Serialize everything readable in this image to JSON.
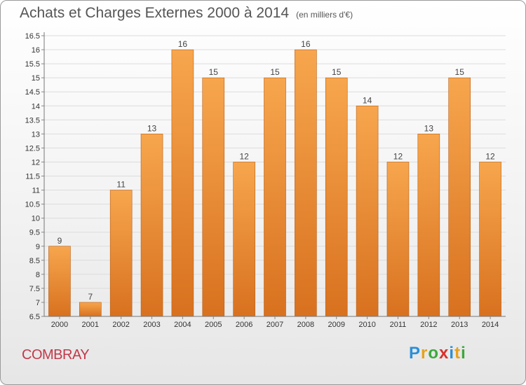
{
  "header": {
    "title": "Achats et Charges Externes 2000 à 2014",
    "unit": "(en milliers d'€)"
  },
  "footer": {
    "town": "COMBRAY",
    "logo": [
      "P",
      "r",
      "o",
      "x",
      "i",
      "t",
      "i"
    ],
    "logo_colors": [
      "#2b8fd6",
      "#e8a11a",
      "#3da83d",
      "#d8312a",
      "#2b8fd6",
      "#e8a11a",
      "#3da83d"
    ]
  },
  "chart_data": {
    "type": "bar",
    "title": "Achats et Charges Externes 2000 à 2014",
    "subtitle": "(en milliers d'€)",
    "xlabel": "",
    "ylabel": "",
    "categories": [
      "2000",
      "2001",
      "2002",
      "2003",
      "2004",
      "2005",
      "2006",
      "2007",
      "2008",
      "2009",
      "2010",
      "2011",
      "2012",
      "2013",
      "2014"
    ],
    "values": [
      9,
      7,
      11,
      13,
      16,
      15,
      12,
      15,
      16,
      15,
      14,
      12,
      13,
      15,
      12
    ],
    "ylim": [
      6.5,
      16.5
    ],
    "yticks": [
      "6.5",
      "7",
      "7.5",
      "8",
      "8.5",
      "9",
      "9.5",
      "10",
      "10.5",
      "11",
      "11.5",
      "12",
      "12.5",
      "13",
      "13.5",
      "14",
      "14.5",
      "15",
      "15.5",
      "16",
      "16.5"
    ],
    "grid": true,
    "bar_color_top": "#f7a64e",
    "bar_color_bottom": "#d8711f"
  }
}
